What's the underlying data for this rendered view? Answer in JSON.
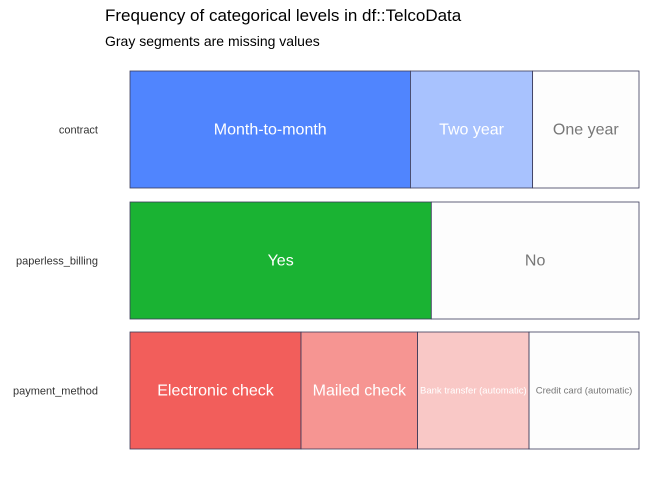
{
  "chart_data": {
    "type": "bar",
    "title": "Frequency of categorical levels in df::TelcoData",
    "subtitle": "Gray segments are missing values",
    "xlabel": "",
    "ylabel": "",
    "series": [
      {
        "name": "contract",
        "levels": [
          "Month-to-month",
          "Two year",
          "One year"
        ],
        "proportions": [
          0.551,
          0.24,
          0.209
        ],
        "colors": [
          "#5085FE",
          "#A8C2FE",
          "#FDFDFD"
        ],
        "label_colors": [
          "#FFFFFF",
          "#FFFFFF",
          "#777777"
        ],
        "label_sizes": [
          "large",
          "large",
          "large"
        ]
      },
      {
        "name": "paperless_billing",
        "levels": [
          "Yes",
          "No"
        ],
        "proportions": [
          0.592,
          0.408
        ],
        "colors": [
          "#1AB333",
          "#FDFDFD"
        ],
        "label_colors": [
          "#FFFFFF",
          "#777777"
        ],
        "label_sizes": [
          "large",
          "large"
        ]
      },
      {
        "name": "payment_method",
        "levels": [
          "Electronic check",
          "Mailed check",
          "Bank transfer (automatic)",
          "Credit card (automatic)"
        ],
        "proportions": [
          0.336,
          0.229,
          0.219,
          0.216
        ],
        "colors": [
          "#F25E5B",
          "#F69592",
          "#F9C8C6",
          "#FDFDFD"
        ],
        "label_colors": [
          "#FFFFFF",
          "#FFFFFF",
          "#FFFFFF",
          "#777777"
        ],
        "label_sizes": [
          "large",
          "large",
          "small",
          "small"
        ]
      }
    ]
  }
}
